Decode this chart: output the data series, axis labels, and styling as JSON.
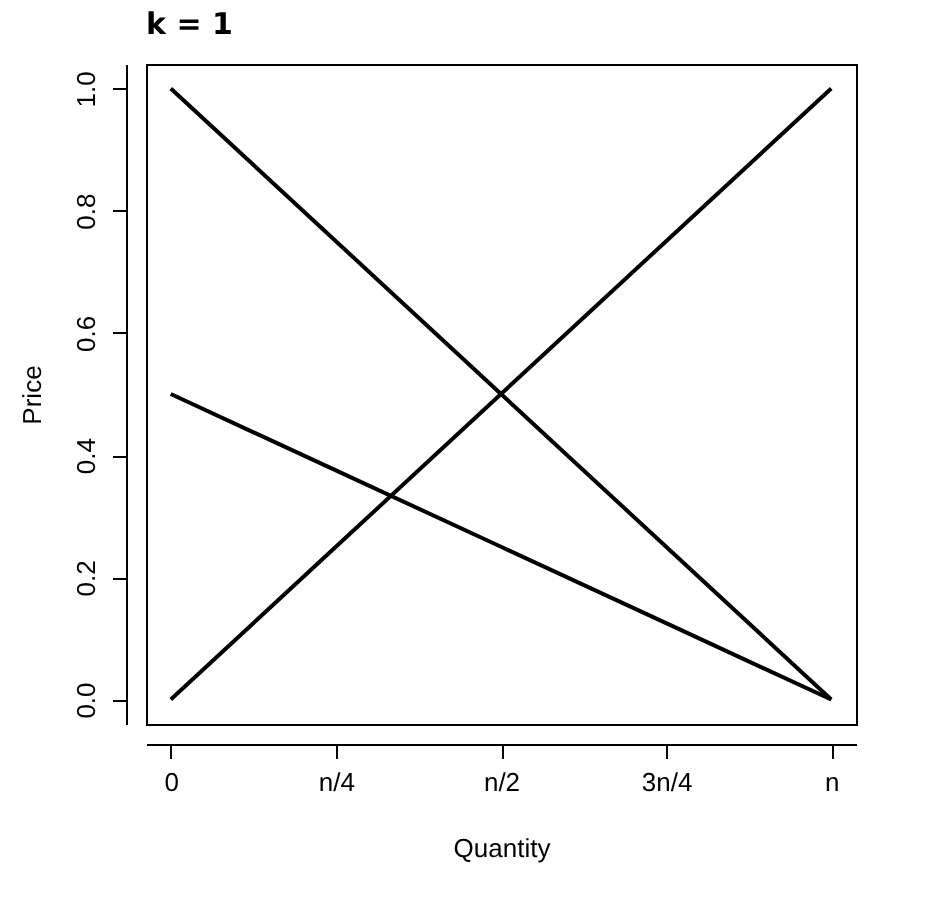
{
  "chart_data": {
    "type": "line",
    "title": "k = 1",
    "xlabel": "Quantity",
    "ylabel": "Price",
    "categories": [
      "0",
      "n/4",
      "n/2",
      "3n/4",
      "n"
    ],
    "series": [
      {
        "color": "#000000",
        "values": [
          1,
          0.75,
          0.5,
          0.25,
          0
        ]
      },
      {
        "color": "#000000",
        "values": [
          0.5,
          0.375,
          0.25,
          0.125,
          0
        ]
      },
      {
        "color": "#000000",
        "values": [
          0,
          0.25,
          0.5,
          0.75,
          1
        ]
      }
    ],
    "ylim": [
      -0.04,
      1.04
    ],
    "yticks": [
      {
        "value": 0,
        "label": "0.0"
      },
      {
        "value": 0.2,
        "label": "0.2"
      },
      {
        "value": 0.4,
        "label": "0.4"
      },
      {
        "value": 0.6,
        "label": "0.6"
      },
      {
        "value": 0.8,
        "label": "0.8"
      },
      {
        "value": 1,
        "label": "1.0"
      }
    ],
    "grid": false,
    "legend": false,
    "marker": "none",
    "line_style": "solid"
  }
}
